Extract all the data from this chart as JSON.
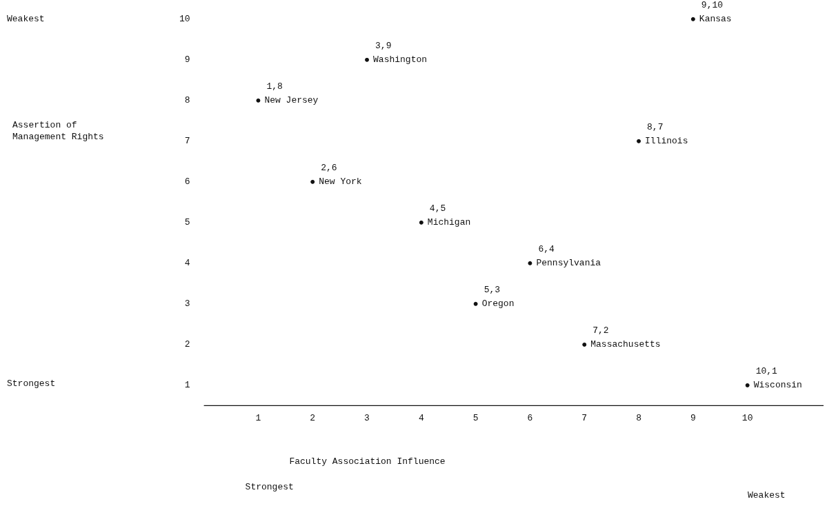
{
  "chart_data": {
    "type": "scatter",
    "xlabel": "Faculty Association Influence",
    "x": [
      1,
      2,
      3,
      4,
      5,
      6,
      7,
      8,
      9,
      10
    ],
    "values": [
      8,
      6,
      9,
      5,
      3,
      4,
      2,
      7,
      10,
      1
    ],
    "color": "#111111",
    "marker": "circle",
    "xlim": [
      0,
      11.4
    ],
    "xticks": [
      1,
      2,
      3,
      4,
      5,
      6,
      7,
      8,
      9,
      10
    ],
    "ylim": [
      0.5,
      10
    ],
    "yticks": [
      1,
      2,
      3,
      4,
      5,
      6,
      7,
      8,
      9,
      10
    ],
    "annotations": [
      "Weakest",
      "Assertion of Management Rights",
      "Strongest",
      "Strongest",
      "Weakest",
      {
        "text": "1,8",
        "x": 1,
        "y": 8
      },
      {
        "text": "New Jersey",
        "x": 1,
        "y": 8
      },
      {
        "text": "2,6",
        "x": 2,
        "y": 6
      },
      {
        "text": "New York",
        "x": 2,
        "y": 6
      },
      {
        "text": "3,9",
        "x": 3,
        "y": 9
      },
      {
        "text": "Washington",
        "x": 3,
        "y": 9
      },
      {
        "text": "4,5",
        "x": 4,
        "y": 5
      },
      {
        "text": "Michigan",
        "x": 4,
        "y": 5
      },
      {
        "text": "5,3",
        "x": 5,
        "y": 3
      },
      {
        "text": "Oregon",
        "x": 5,
        "y": 3
      },
      {
        "text": "6,4",
        "x": 6,
        "y": 4
      },
      {
        "text": "Pennsylvania",
        "x": 6,
        "y": 4
      },
      {
        "text": "7,2",
        "x": 7,
        "y": 2
      },
      {
        "text": "Massachusetts",
        "x": 7,
        "y": 2
      },
      {
        "text": "8,7",
        "x": 8,
        "y": 7
      },
      {
        "text": "Illinois",
        "x": 8,
        "y": 7
      },
      {
        "text": "9,10",
        "x": 9,
        "y": 10
      },
      {
        "text": "Kansas",
        "x": 9,
        "y": 10
      },
      {
        "text": "10,1",
        "x": 10,
        "y": 1
      },
      {
        "text": "Wisconsin",
        "x": 10,
        "y": 1
      }
    ]
  }
}
